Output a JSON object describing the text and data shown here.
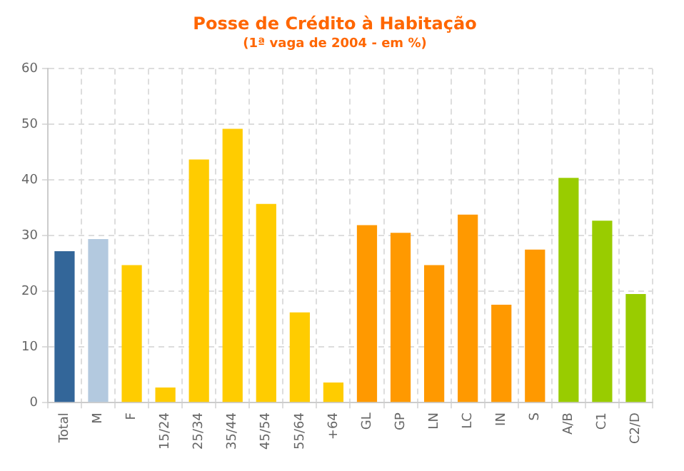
{
  "chart_data": {
    "type": "bar",
    "title": "Posse de Crédito à Habitação",
    "subtitle": "(1ª vaga de 2004 - em %)",
    "categories": [
      "Total",
      "M",
      "F",
      "15/24",
      "25/34",
      "35/44",
      "45/54",
      "55/64",
      "+64",
      "GL",
      "GP",
      "LN",
      "LC",
      "IN",
      "S",
      "A/B",
      "C1",
      "C2/D"
    ],
    "values": [
      27.2,
      29.4,
      24.7,
      2.7,
      43.7,
      49.2,
      35.7,
      16.2,
      3.6,
      31.9,
      30.5,
      24.7,
      33.8,
      17.6,
      27.5,
      40.4,
      32.7,
      19.5
    ],
    "colors": [
      "#336699",
      "#b3c9df",
      "#ffcc00",
      "#ffcc00",
      "#ffcc00",
      "#ffcc00",
      "#ffcc00",
      "#ffcc00",
      "#ffcc00",
      "#ff9900",
      "#ff9900",
      "#ff9900",
      "#ff9900",
      "#ff9900",
      "#ff9900",
      "#99cc00",
      "#99cc00",
      "#99cc00"
    ],
    "ylim": [
      0,
      60
    ],
    "yticks": [
      0,
      10,
      20,
      30,
      40,
      50,
      60
    ],
    "grid": true,
    "legend": false
  }
}
